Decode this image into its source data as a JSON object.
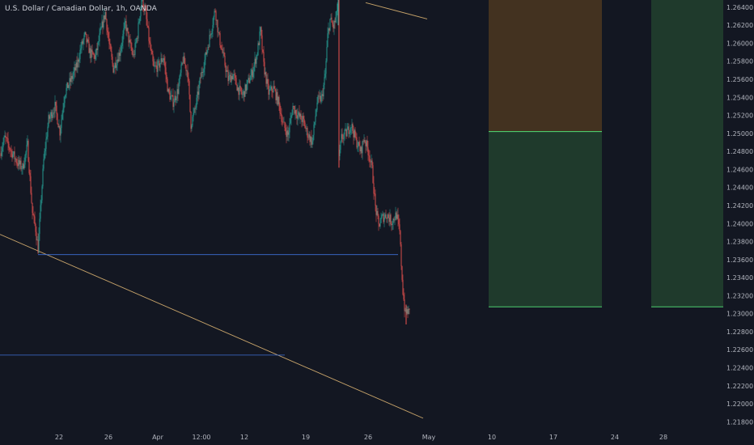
{
  "header": {
    "symbol_title": "U.S. Dollar / Canadian Dollar, 1h, OANDA"
  },
  "colors": {
    "background": "#131722",
    "candle_up": "#26a69a",
    "candle_down": "#ef5350",
    "trendline": "#c8a46a",
    "level_line": "#3d6fd6",
    "zone_brown": "#433220",
    "zone_green": "#1f3a2c",
    "zone_edge": "#4fcf6f",
    "axis_text": "#b2b5be"
  },
  "chart_data": {
    "type": "candlestick",
    "title": "U.S. Dollar / Canadian Dollar, 1h, OANDA",
    "x_tick_labels": [
      "22",
      "26",
      "Apr",
      "12:00",
      "12",
      "19",
      "26",
      "May",
      "10",
      "17",
      "24",
      "28"
    ],
    "y_tick_labels": [
      "1.26400",
      "1.26200",
      "1.26000",
      "1.25800",
      "1.25600",
      "1.25400",
      "1.25200",
      "1.25000",
      "1.24800",
      "1.24600",
      "1.24400",
      "1.24200",
      "1.24000",
      "1.23800",
      "1.23600",
      "1.23400",
      "1.23200",
      "1.23000",
      "1.22800",
      "1.22600",
      "1.22400",
      "1.22200",
      "1.22000",
      "1.21800"
    ],
    "ylim": [
      1.2174,
      1.2648
    ],
    "grid": false,
    "price_path": [
      [
        0,
        1.2478
      ],
      [
        6,
        1.2495
      ],
      [
        14,
        1.248
      ],
      [
        22,
        1.2467
      ],
      [
        28,
        1.2462
      ],
      [
        34,
        1.2487
      ],
      [
        40,
        1.2412
      ],
      [
        44,
        1.2394
      ],
      [
        47,
        1.2372
      ],
      [
        50,
        1.2415
      ],
      [
        54,
        1.247
      ],
      [
        60,
        1.2515
      ],
      [
        68,
        1.253
      ],
      [
        74,
        1.2502
      ],
      [
        80,
        1.2545
      ],
      [
        88,
        1.256
      ],
      [
        95,
        1.2575
      ],
      [
        100,
        1.2595
      ],
      [
        105,
        1.2608
      ],
      [
        112,
        1.2588
      ],
      [
        118,
        1.2585
      ],
      [
        125,
        1.2615
      ],
      [
        130,
        1.2634
      ],
      [
        135,
        1.2598
      ],
      [
        140,
        1.2572
      ],
      [
        148,
        1.259
      ],
      [
        155,
        1.2622
      ],
      [
        160,
        1.26
      ],
      [
        165,
        1.2585
      ],
      [
        170,
        1.261
      ],
      [
        175,
        1.265
      ],
      [
        180,
        1.2632
      ],
      [
        185,
        1.2598
      ],
      [
        190,
        1.2572
      ],
      [
        196,
        1.2575
      ],
      [
        202,
        1.2585
      ],
      [
        208,
        1.2545
      ],
      [
        214,
        1.2535
      ],
      [
        220,
        1.2548
      ],
      [
        226,
        1.2582
      ],
      [
        232,
        1.2568
      ],
      [
        236,
        1.251
      ],
      [
        242,
        1.253
      ],
      [
        248,
        1.2562
      ],
      [
        254,
        1.2585
      ],
      [
        260,
        1.261
      ],
      [
        266,
        1.2638
      ],
      [
        270,
        1.261
      ],
      [
        276,
        1.2585
      ],
      [
        282,
        1.256
      ],
      [
        288,
        1.2565
      ],
      [
        294,
        1.255
      ],
      [
        300,
        1.2542
      ],
      [
        306,
        1.2555
      ],
      [
        312,
        1.2568
      ],
      [
        318,
        1.259
      ],
      [
        322,
        1.2614
      ],
      [
        326,
        1.2575
      ],
      [
        332,
        1.2545
      ],
      [
        338,
        1.255
      ],
      [
        344,
        1.2535
      ],
      [
        350,
        1.251
      ],
      [
        356,
        1.2498
      ],
      [
        362,
        1.253
      ],
      [
        368,
        1.252
      ],
      [
        374,
        1.2515
      ],
      [
        380,
        1.25
      ],
      [
        386,
        1.249
      ],
      [
        392,
        1.2535
      ],
      [
        398,
        1.254
      ],
      [
        402,
        1.2565
      ],
      [
        405,
        1.2608
      ],
      [
        408,
        1.2626
      ],
      [
        412,
        1.2618
      ],
      [
        416,
        1.263
      ],
      [
        418,
        1.266
      ],
      [
        419,
        1.247
      ],
      [
        422,
        1.2495
      ],
      [
        428,
        1.25
      ],
      [
        434,
        1.251
      ],
      [
        440,
        1.2492
      ],
      [
        446,
        1.248
      ],
      [
        450,
        1.2495
      ],
      [
        456,
        1.2478
      ],
      [
        460,
        1.246
      ],
      [
        464,
        1.2418
      ],
      [
        468,
        1.2398
      ],
      [
        472,
        1.2406
      ],
      [
        478,
        1.241
      ],
      [
        484,
        1.2402
      ],
      [
        490,
        1.241
      ],
      [
        494,
        1.239
      ],
      [
        496,
        1.2355
      ],
      [
        498,
        1.2325
      ],
      [
        501,
        1.2298
      ],
      [
        503,
        1.2303
      ],
      [
        506,
        1.2301
      ]
    ],
    "annotations": [
      {
        "type": "trendline",
        "from": [
          0,
          1.2388
        ],
        "to": [
          523,
          1.2184
        ]
      },
      {
        "type": "trendline",
        "from": [
          452,
          1.2645
        ],
        "to": [
          528,
          1.2627
        ]
      },
      {
        "type": "horizontal-segment",
        "from": [
          47,
          1.23655
        ],
        "to": [
          492,
          1.23655
        ]
      },
      {
        "type": "horizontal-segment",
        "from": [
          0,
          1.2254
        ],
        "to": [
          352,
          1.2254
        ]
      },
      {
        "type": "zone",
        "color": "brown",
        "x": [
          604,
          744
        ],
        "y": [
          1.2502,
          1.2648
        ]
      },
      {
        "type": "zone",
        "color": "green",
        "x": [
          604,
          744
        ],
        "y": [
          1.23075,
          1.2502
        ]
      },
      {
        "type": "zone",
        "color": "green",
        "x": [
          805,
          894
        ],
        "y": [
          1.23075,
          1.2648
        ]
      }
    ]
  }
}
